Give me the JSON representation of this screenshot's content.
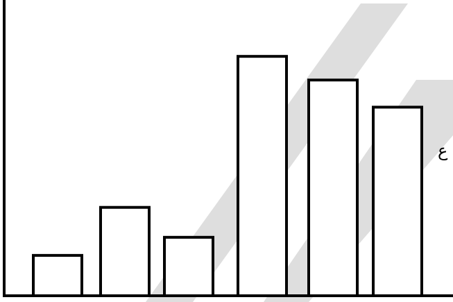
{
  "colors": {
    "bar_fill": "#ffffff",
    "bar_stroke": "#000000",
    "axis": "#000000",
    "watermark": "#dedede"
  },
  "side_label": "ع",
  "chart_data": {
    "type": "bar",
    "categories": [
      "",
      "",
      "",
      "",
      "",
      ""
    ],
    "values": [
      58,
      127,
      84,
      344,
      310,
      271
    ],
    "title": "",
    "xlabel": "",
    "ylabel": "",
    "ylim": [
      0,
      425
    ],
    "grid": false,
    "legend": "none"
  }
}
